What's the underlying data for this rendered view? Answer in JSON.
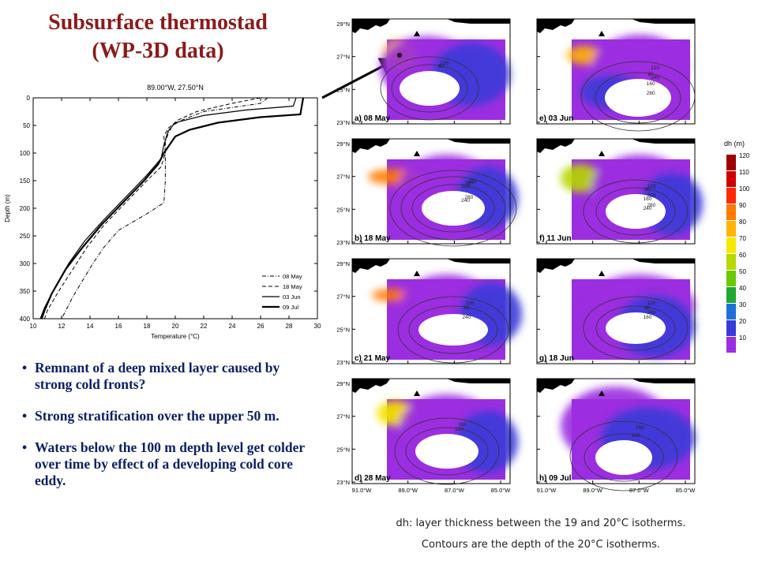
{
  "slide": {
    "title_line1": "Subsurface thermostad",
    "title_line2": "(WP-3D data)",
    "bullets": [
      "Remnant of a deep mixed layer caused by strong cold fronts?",
      "Strong stratification over the upper 50 m.",
      "Waters below the 100 m depth level get colder over time by effect of a developing cold core eddy."
    ],
    "caption_line1": "dh: layer thickness between the 19 and 20°C isotherms.",
    "caption_line2": "Contours are the depth of the 20°C isotherms."
  },
  "colors": {
    "title": "#8b1a1a",
    "bullets": "#0b1f66",
    "arrow": "#000000"
  },
  "chart_data": [
    {
      "type": "line",
      "title": "89.00°W, 27.50°N",
      "xlabel": "Temperature (°C)",
      "ylabel": "Depth (m)",
      "xlim": [
        10,
        30
      ],
      "ylim": [
        0,
        400
      ],
      "y_inverted": true,
      "x_ticks": [
        "10",
        "12",
        "14",
        "16",
        "18",
        "20",
        "22",
        "24",
        "26",
        "28",
        "30"
      ],
      "y_ticks": [
        "0",
        "50",
        "100",
        "150",
        "200",
        "250",
        "300",
        "350",
        "400"
      ],
      "legend_position": "bottom-right",
      "series": [
        {
          "name": "08 May",
          "style": "dash-dot",
          "width": 1,
          "points": [
            [
              26.5,
              0
            ],
            [
              26,
              10
            ],
            [
              22,
              25
            ],
            [
              20.5,
              40
            ],
            [
              19.8,
              50
            ],
            [
              19.5,
              65
            ],
            [
              19.3,
              80
            ],
            [
              19.3,
              100
            ],
            [
              19.3,
              150
            ],
            [
              19.2,
              190
            ],
            [
              18,
              210
            ],
            [
              16,
              240
            ],
            [
              15,
              270
            ],
            [
              14.2,
              300
            ],
            [
              13.5,
              330
            ],
            [
              12.8,
              360
            ],
            [
              12.2,
              390
            ],
            [
              12,
              400
            ]
          ]
        },
        {
          "name": "18 May",
          "style": "dashed",
          "width": 1,
          "points": [
            [
              26,
              0
            ],
            [
              24,
              10
            ],
            [
              21.5,
              25
            ],
            [
              20.2,
              40
            ],
            [
              19.5,
              55
            ],
            [
              19.2,
              70
            ],
            [
              19.3,
              100
            ],
            [
              19,
              125
            ],
            [
              18,
              150
            ],
            [
              16.5,
              190
            ],
            [
              15,
              230
            ],
            [
              13.8,
              270
            ],
            [
              12.8,
              310
            ],
            [
              11.8,
              350
            ],
            [
              11,
              385
            ],
            [
              10.8,
              400
            ]
          ]
        },
        {
          "name": "03 Jun",
          "style": "solid",
          "width": 1.2,
          "points": [
            [
              28.5,
              0
            ],
            [
              28.3,
              15
            ],
            [
              25,
              22
            ],
            [
              22,
              32
            ],
            [
              20,
              45
            ],
            [
              19.5,
              60
            ],
            [
              19.2,
              85
            ],
            [
              19,
              110
            ],
            [
              18,
              140
            ],
            [
              16.5,
              180
            ],
            [
              15,
              220
            ],
            [
              13.6,
              260
            ],
            [
              12.5,
              300
            ],
            [
              11.5,
              345
            ],
            [
              10.8,
              380
            ],
            [
              10.5,
              400
            ]
          ]
        },
        {
          "name": "09 Jul",
          "style": "solid",
          "width": 2.2,
          "points": [
            [
              29,
              0
            ],
            [
              28.8,
              30
            ],
            [
              26,
              35
            ],
            [
              23,
              45
            ],
            [
              21,
              58
            ],
            [
              20,
              70
            ],
            [
              19.6,
              85
            ],
            [
              19.2,
              100
            ],
            [
              18.8,
              120
            ],
            [
              17.8,
              150
            ],
            [
              16.3,
              190
            ],
            [
              14.8,
              230
            ],
            [
              13.5,
              270
            ],
            [
              12.3,
              310
            ],
            [
              11.3,
              355
            ],
            [
              10.8,
              385
            ],
            [
              10.6,
              400
            ]
          ]
        }
      ]
    },
    {
      "type": "heatmap",
      "panels": [
        {
          "label": "a) 08 May"
        },
        {
          "label": "b) 18 May"
        },
        {
          "label": "c) 21 May"
        },
        {
          "label": "d) 28 May"
        },
        {
          "label": "e) 03 Jun"
        },
        {
          "label": "f) 11 Jun"
        },
        {
          "label": "g) 18 Jun"
        },
        {
          "label": "h) 09 Jul"
        }
      ],
      "lat_ticks": [
        "29°N",
        "27°N",
        "25°N",
        "23°N"
      ],
      "lon_ticks": [
        "91.0°W",
        "89.0°W",
        "87.0°W",
        "85.0°W"
      ],
      "colorbar_title": "dh (m)",
      "colorbar_values": [
        "120",
        "110",
        "100",
        "90",
        "80",
        "70",
        "60",
        "50",
        "40",
        "30",
        "20",
        "10"
      ],
      "colorbar_colors": [
        "#9e0000",
        "#d00000",
        "#ff2a00",
        "#ff7a00",
        "#ffb400",
        "#f4ea00",
        "#b8d800",
        "#6cc800",
        "#20a830",
        "#1f6fd8",
        "#3a3ad8",
        "#9b2ee0"
      ],
      "panel_contours": {
        "a) 08 May": [
          "80",
          "120"
        ],
        "b) 18 May": [
          "120",
          "160",
          "200",
          "240",
          "280"
        ],
        "c) 21 May": [
          "80",
          "120",
          "240"
        ],
        "d) 28 May": [
          "120",
          "160"
        ],
        "e) 03 Jun": [
          "80",
          "120",
          "160",
          "240",
          "280"
        ],
        "f) 11 Jun": [
          "80",
          "120",
          "160",
          "200",
          "240",
          "280"
        ],
        "g) 18 Jun": [
          "80",
          "120",
          "160",
          "240"
        ],
        "h) 09 Jul": [
          "120",
          "160"
        ]
      }
    }
  ]
}
